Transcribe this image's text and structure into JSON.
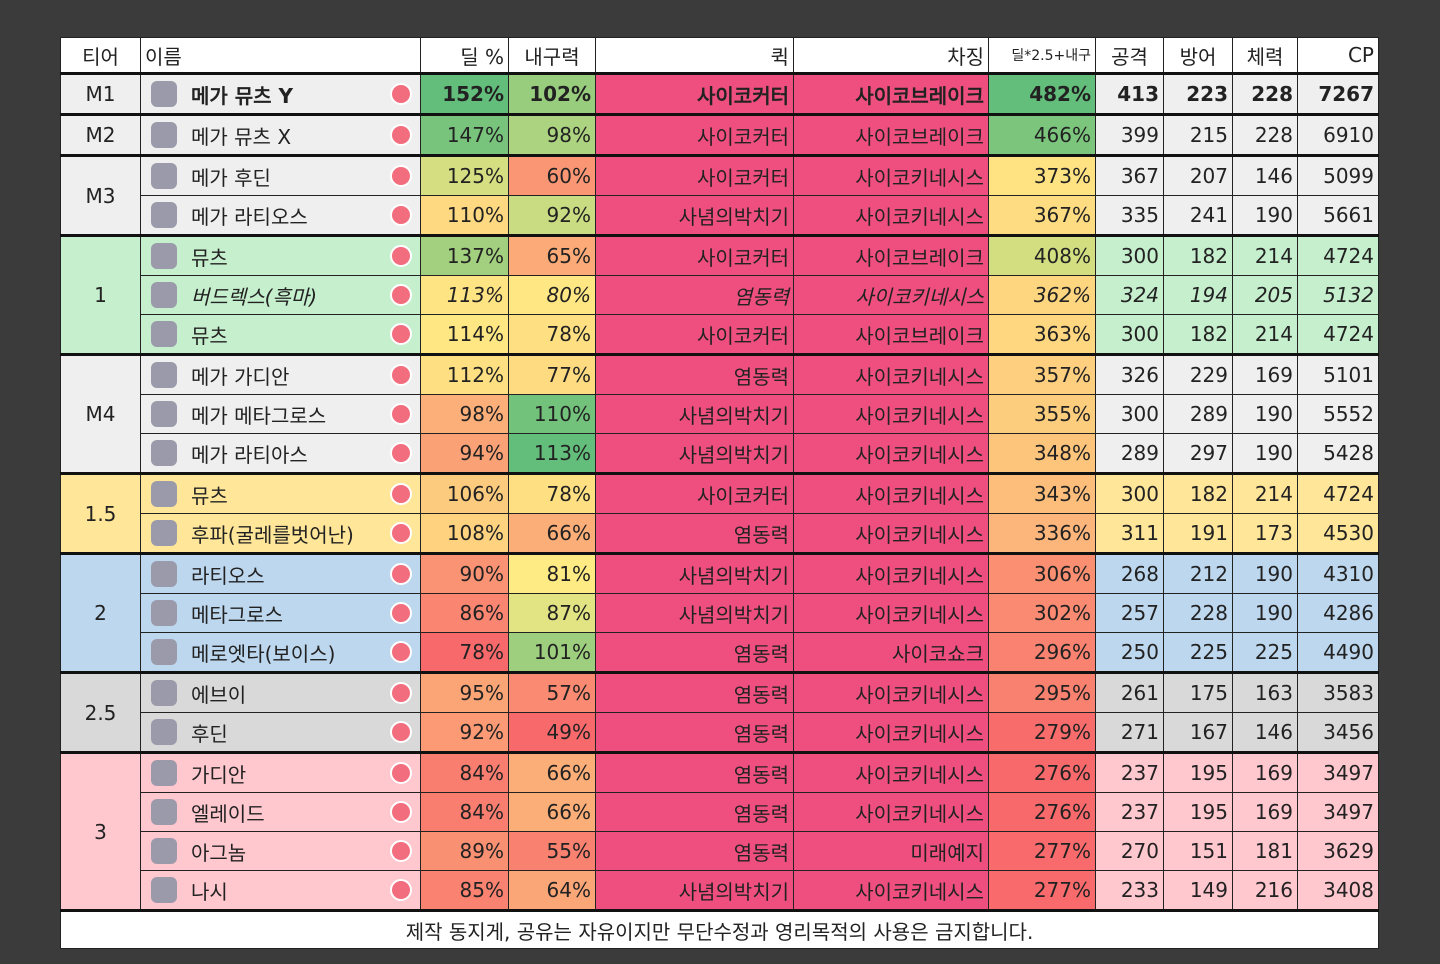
{
  "header": [
    "티어",
    "이름",
    "딜 %",
    "내구력",
    "퀵",
    "차징",
    "딜*2.5+내구",
    "공격",
    "방어",
    "체력",
    "CP"
  ],
  "groups": [
    {
      "tier": "M1",
      "color": "#efefef",
      "rows": [
        {
          "font": "bold",
          "cells": [
            "메가 뮤츠 Y",
            "152%",
            "102%",
            "사이코커터",
            "사이코브레이크",
            "482%",
            "413",
            "223",
            "228",
            "7267"
          ]
        }
      ]
    },
    {
      "tier": "M2",
      "color": "#efefef",
      "rows": [
        {
          "cells": [
            "메가 뮤츠 X",
            "147%",
            "98%",
            "사이코커터",
            "사이코브레이크",
            "466%",
            "399",
            "215",
            "228",
            "6910"
          ]
        }
      ]
    },
    {
      "tier": "M3",
      "color": "#efefef",
      "rows": [
        {
          "cells": [
            "메가 후딘",
            "125%",
            "60%",
            "사이코커터",
            "사이코키네시스",
            "373%",
            "367",
            "207",
            "146",
            "5099"
          ]
        },
        {
          "cells": [
            "메가 라티오스",
            "110%",
            "92%",
            "사념의박치기",
            "사이코키네시스",
            "367%",
            "335",
            "241",
            "190",
            "5661"
          ]
        }
      ]
    },
    {
      "tier": "1",
      "color": "#c6efce",
      "rows": [
        {
          "cells": [
            "뮤츠",
            "137%",
            "65%",
            "사이코커터",
            "사이코브레이크",
            "408%",
            "300",
            "182",
            "214",
            "4724"
          ]
        },
        {
          "font": "italic",
          "cells": [
            "버드렉스(흑마)",
            "113%",
            "80%",
            "염동력",
            "사이코키네시스",
            "362%",
            "324",
            "194",
            "205",
            "5132"
          ]
        },
        {
          "cells": [
            "뮤츠",
            "114%",
            "78%",
            "사이코커터",
            "사이코브레이크",
            "363%",
            "300",
            "182",
            "214",
            "4724"
          ]
        }
      ]
    },
    {
      "tier": "M4",
      "color": "#efefef",
      "rows": [
        {
          "cells": [
            "메가 가디안",
            "112%",
            "77%",
            "염동력",
            "사이코키네시스",
            "357%",
            "326",
            "229",
            "169",
            "5101"
          ]
        },
        {
          "cells": [
            "메가 메타그로스",
            "98%",
            "110%",
            "사념의박치기",
            "사이코키네시스",
            "355%",
            "300",
            "289",
            "190",
            "5552"
          ]
        },
        {
          "cells": [
            "메가 라티아스",
            "94%",
            "113%",
            "사념의박치기",
            "사이코키네시스",
            "348%",
            "289",
            "297",
            "190",
            "5428"
          ]
        }
      ]
    },
    {
      "tier": "1.5",
      "color": "#ffe699",
      "rows": [
        {
          "cells": [
            "뮤츠",
            "106%",
            "78%",
            "사이코커터",
            "사이코키네시스",
            "343%",
            "300",
            "182",
            "214",
            "4724"
          ]
        },
        {
          "cells": [
            "후파(굴레를벗어난)",
            "108%",
            "66%",
            "염동력",
            "사이코키네시스",
            "336%",
            "311",
            "191",
            "173",
            "4530"
          ]
        }
      ]
    },
    {
      "tier": "2",
      "color": "#bdd7ee",
      "rows": [
        {
          "cells": [
            "라티오스",
            "90%",
            "81%",
            "사념의박치기",
            "사이코키네시스",
            "306%",
            "268",
            "212",
            "190",
            "4310"
          ]
        },
        {
          "cells": [
            "메타그로스",
            "86%",
            "87%",
            "사념의박치기",
            "사이코키네시스",
            "302%",
            "257",
            "228",
            "190",
            "4286"
          ]
        },
        {
          "cells": [
            "메로엣타(보이스)",
            "78%",
            "101%",
            "염동력",
            "사이코쇼크",
            "296%",
            "250",
            "225",
            "225",
            "4490"
          ]
        }
      ]
    },
    {
      "tier": "2.5",
      "color": "#d9d9d9",
      "rows": [
        {
          "cells": [
            "에브이",
            "95%",
            "57%",
            "염동력",
            "사이코키네시스",
            "295%",
            "261",
            "175",
            "163",
            "3583"
          ]
        },
        {
          "cells": [
            "후딘",
            "92%",
            "49%",
            "염동력",
            "사이코키네시스",
            "279%",
            "271",
            "167",
            "146",
            "3456"
          ]
        }
      ]
    },
    {
      "tier": "3",
      "color": "#ffc7ce",
      "rows": [
        {
          "cells": [
            "가디안",
            "84%",
            "66%",
            "염동력",
            "사이코키네시스",
            "276%",
            "237",
            "195",
            "169",
            "3497"
          ]
        },
        {
          "cells": [
            "엘레이드",
            "84%",
            "66%",
            "염동력",
            "사이코키네시스",
            "276%",
            "237",
            "195",
            "169",
            "3497"
          ]
        },
        {
          "cells": [
            "아그놈",
            "89%",
            "55%",
            "염동력",
            "미래예지",
            "277%",
            "270",
            "151",
            "181",
            "3629"
          ]
        },
        {
          "cells": [
            "나시",
            "85%",
            "64%",
            "사념의박치기",
            "사이코키네시스",
            "277%",
            "233",
            "149",
            "216",
            "3408"
          ]
        }
      ]
    }
  ],
  "move_color": "#ef4f7f",
  "footer": "제작 동지게, 공유는 자유이지만 무단수정과 영리목적의 사용은 금지합니다."
}
